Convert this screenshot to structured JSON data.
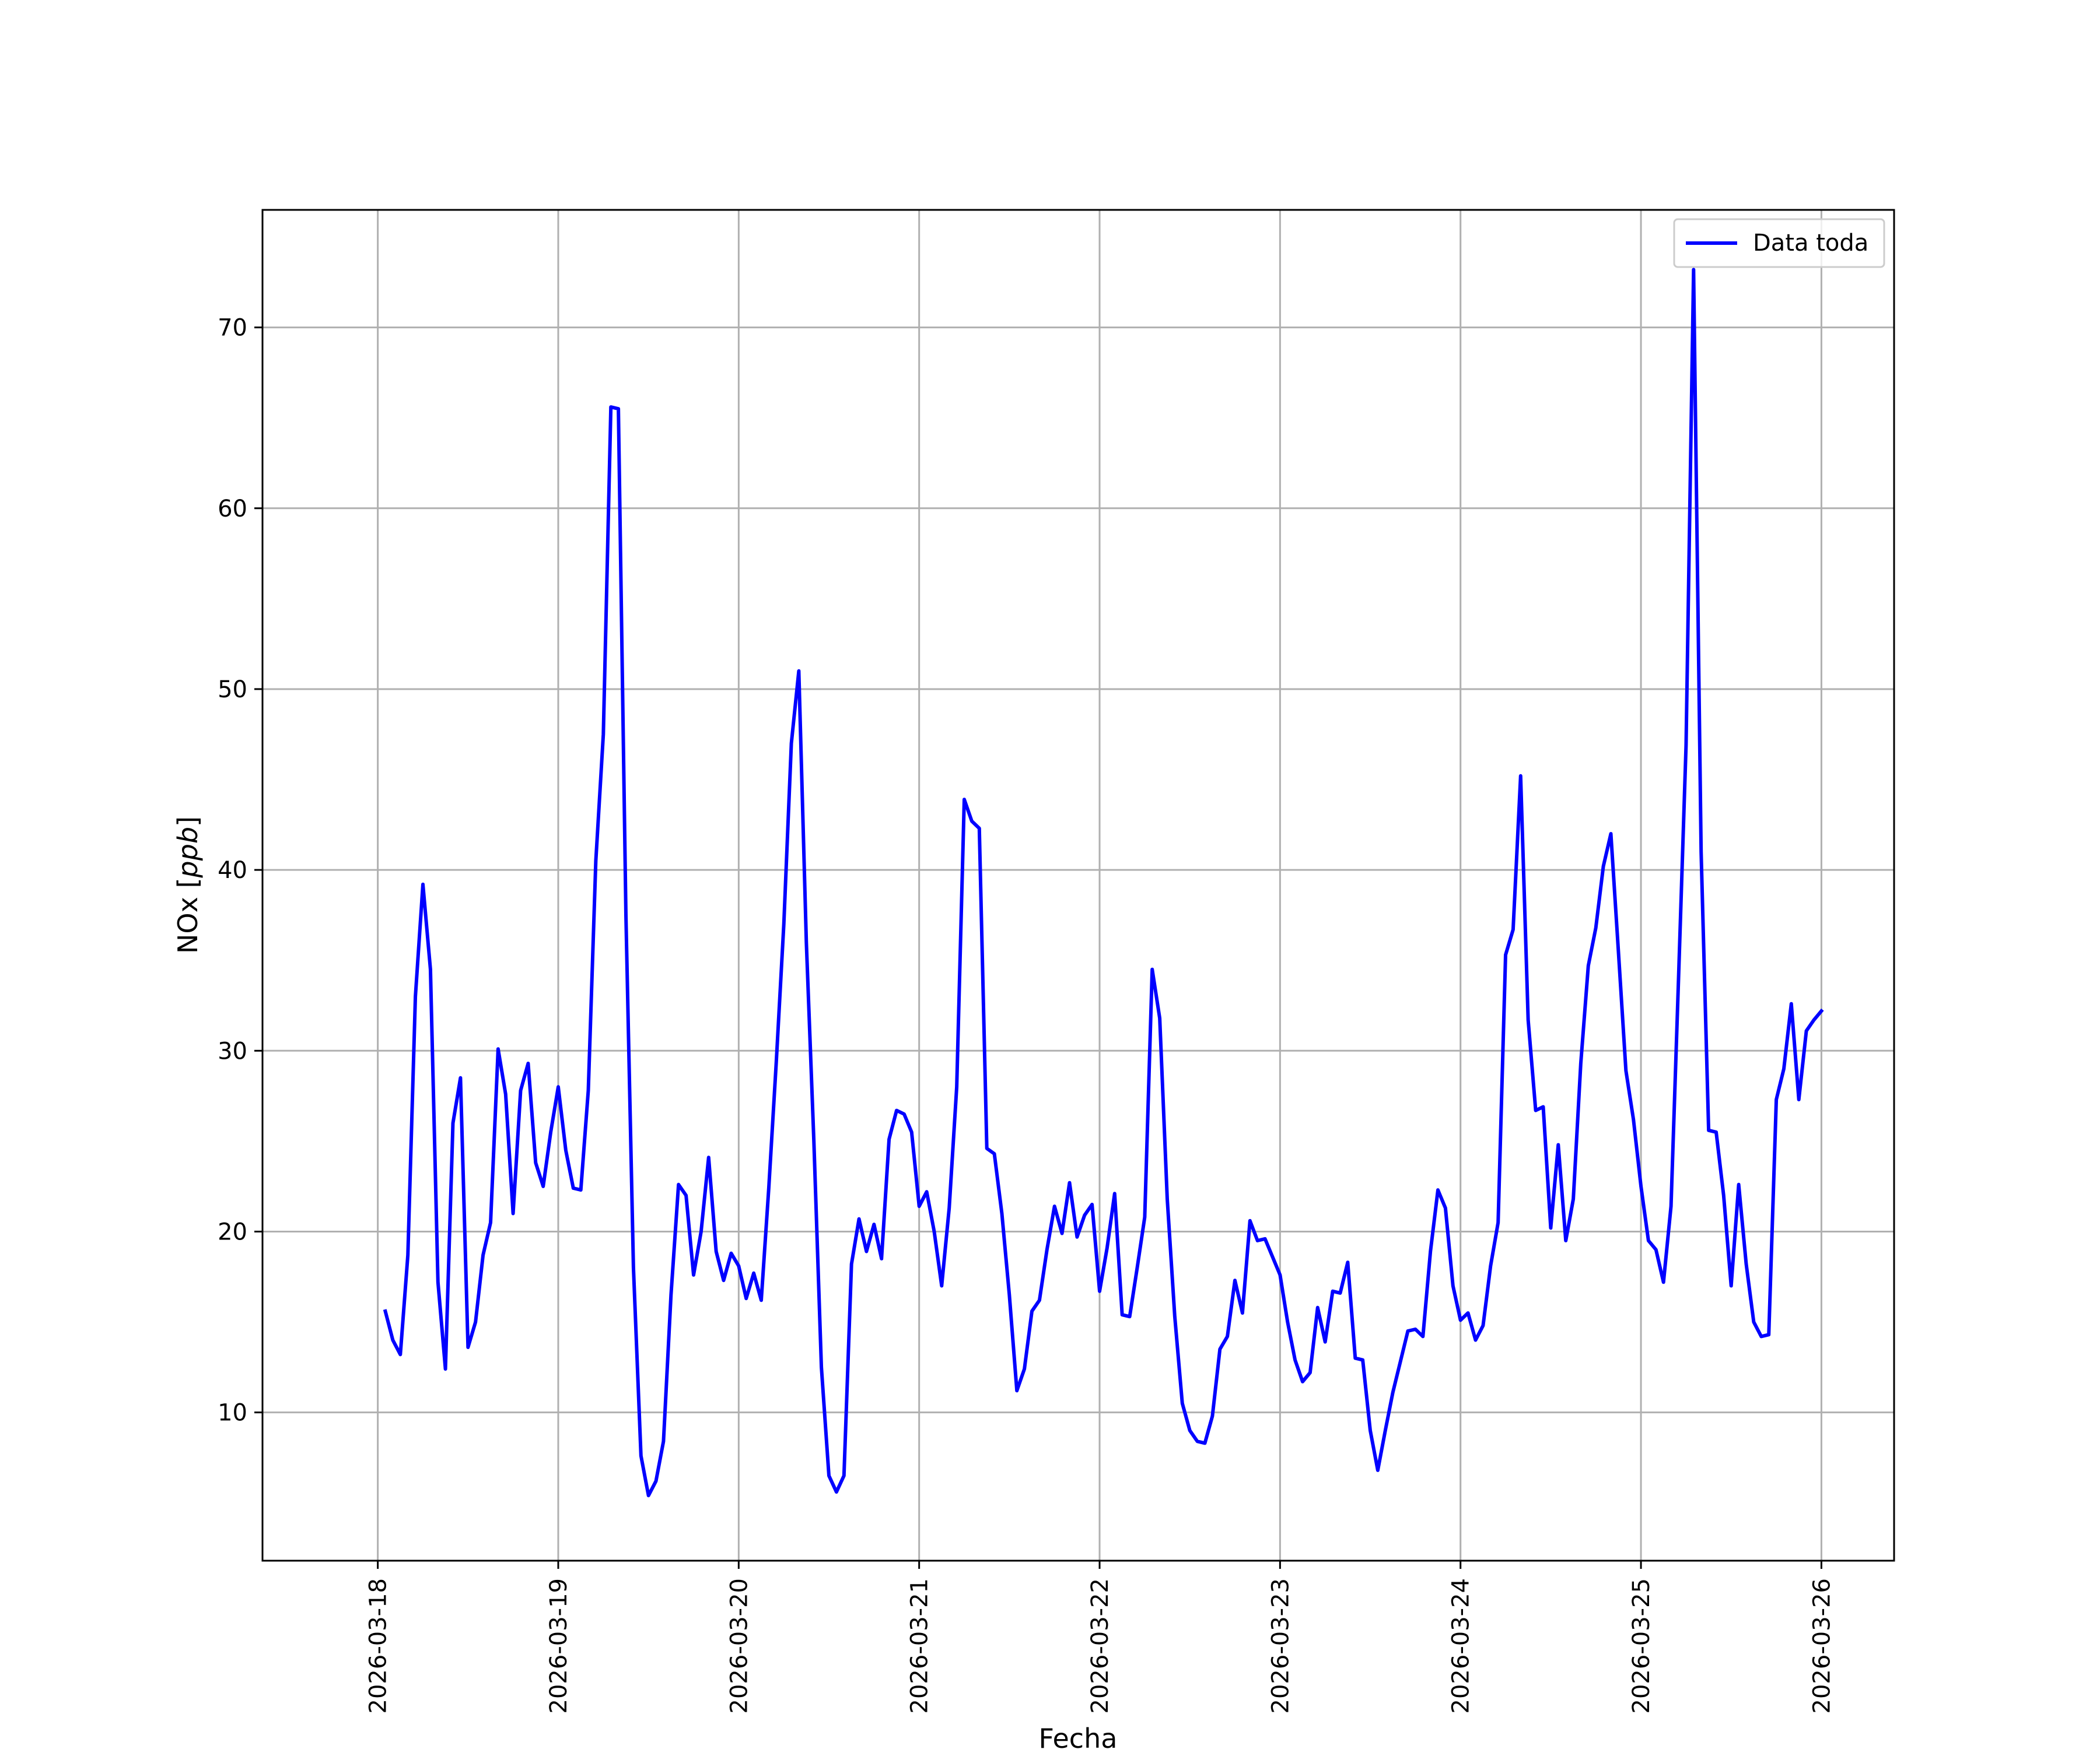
{
  "chart_data": {
    "type": "line",
    "xlabel": "Fecha",
    "ylabel_main": "NOx [",
    "ylabel_unit": "ppb",
    "ylabel_close": "]",
    "ylim": [
      1.8,
      76.5
    ],
    "xlim": [
      "2026-03-17 08:40",
      "2026-03-26 09:40"
    ],
    "yticks": [
      10,
      20,
      30,
      40,
      50,
      60,
      70
    ],
    "xticks": [
      "2026-03-18",
      "2026-03-19",
      "2026-03-20",
      "2026-03-21",
      "2026-03-22",
      "2026-03-23",
      "2026-03-24",
      "2026-03-25",
      "2026-03-26"
    ],
    "grid": true,
    "legend_position": "top-right",
    "series": [
      {
        "name": "Data toda",
        "color": "#0000ff",
        "interval_hours": 1,
        "start": "2026-03-18 01:00",
        "values": [
          15.6,
          14.0,
          13.2,
          18.7,
          33.0,
          39.2,
          34.5,
          17.2,
          12.4,
          26.0,
          28.5,
          13.6,
          15.0,
          18.7,
          20.5,
          30.1,
          27.6,
          21.0,
          27.8,
          29.3,
          23.8,
          22.5,
          25.5,
          28.0,
          24.5,
          22.4,
          22.3,
          27.8,
          40.5,
          47.5,
          65.6,
          65.5,
          37.5,
          18.0,
          7.6,
          5.4,
          6.2,
          8.4,
          16.5,
          22.6,
          22.0,
          17.6,
          20.0,
          24.1,
          18.9,
          17.3,
          18.8,
          18.1,
          16.3,
          17.7,
          16.2,
          22.4,
          29.4,
          37.0,
          47.0,
          51.0,
          36.0,
          25.0,
          12.5,
          6.5,
          5.6,
          6.5,
          18.2,
          20.7,
          18.9,
          20.4,
          18.5,
          25.1,
          26.7,
          26.5,
          25.5,
          21.4,
          22.2,
          20.0,
          17.0,
          21.3,
          28.0,
          43.9,
          42.7,
          42.3,
          24.6,
          24.3,
          21.0,
          16.5,
          11.2,
          12.4,
          15.6,
          16.2,
          19.0,
          21.4,
          19.9,
          22.7,
          19.7,
          20.9,
          21.5,
          16.7,
          19.1,
          22.1,
          15.4,
          15.3,
          18.0,
          20.8,
          34.5,
          31.8,
          21.8,
          15.3,
          10.5,
          9.0,
          8.4,
          8.3,
          9.8,
          13.5,
          14.2,
          17.3,
          15.5,
          20.6,
          19.5,
          19.6,
          18.6,
          17.6,
          15.0,
          12.9,
          11.7,
          12.2,
          15.8,
          13.9,
          16.7,
          16.6,
          18.3,
          13.0,
          12.9,
          9.0,
          6.8,
          9.0,
          11.1,
          12.8,
          14.5,
          14.6,
          14.2,
          18.9,
          22.3,
          21.3,
          17.0,
          15.1,
          15.5,
          14.0,
          14.8,
          18.1,
          20.5,
          35.3,
          36.7,
          45.2,
          31.7,
          26.7,
          26.9,
          20.2,
          24.8,
          19.5,
          21.8,
          29.3,
          34.7,
          36.8,
          40.2,
          42.0,
          35.5,
          28.9,
          26.2,
          22.5,
          19.5,
          19.0,
          17.2,
          21.4,
          34.0,
          46.9,
          73.2,
          41.0,
          25.6,
          25.5,
          22.0,
          17.0,
          22.6,
          18.2,
          15.0,
          14.2,
          14.3,
          27.3,
          29.0,
          32.6,
          27.3,
          31.1,
          31.7,
          32.2
        ]
      }
    ]
  }
}
